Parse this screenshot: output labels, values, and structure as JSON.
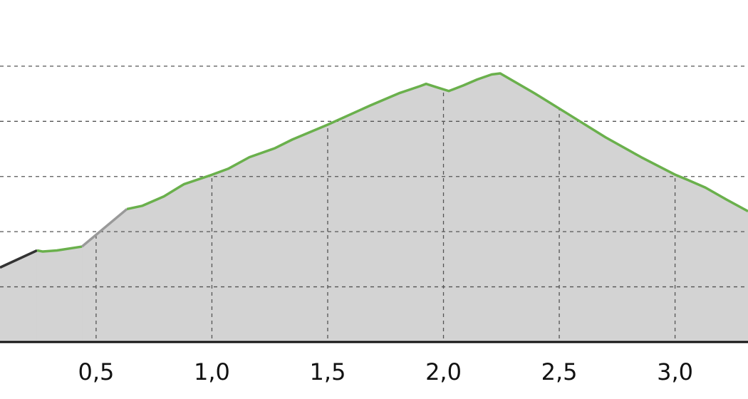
{
  "chart_data": {
    "type": "area-line",
    "xlim": [
      0.085,
      3.315
    ],
    "xticks": [
      {
        "value": 0.5,
        "label": "0,5"
      },
      {
        "value": 1.0,
        "label": "1,0"
      },
      {
        "value": 1.5,
        "label": "1,5"
      },
      {
        "value": 2.0,
        "label": "2,0"
      },
      {
        "value": 2.5,
        "label": "2,5"
      },
      {
        "value": 3.0,
        "label": "3,0"
      }
    ],
    "ylim": [
      0,
      6.2
    ],
    "yticks": [
      1,
      2,
      3,
      4,
      5
    ],
    "grid": true,
    "fill_color": "#d3d3d3",
    "series": [
      {
        "color": "#333333",
        "x": [
          0.085,
          0.245
        ],
        "values": [
          1.35,
          1.66
        ]
      },
      {
        "color": "#6ab04c",
        "x": [
          0.245,
          0.27,
          0.331,
          0.439
        ],
        "values": [
          1.66,
          1.64,
          1.66,
          1.73
        ]
      },
      {
        "color": "#999999",
        "x": [
          0.439,
          0.633
        ],
        "values": [
          1.73,
          2.41
        ]
      },
      {
        "color": "#6ab04c",
        "x": [
          0.633,
          0.7,
          0.793,
          0.879,
          0.999,
          1.07,
          1.162,
          1.27,
          1.347,
          1.5,
          1.685,
          1.808,
          1.9,
          1.925,
          1.962,
          2.023,
          2.085,
          2.146,
          2.208,
          2.245,
          2.393,
          2.547,
          2.7,
          2.854,
          3.002,
          3.054,
          3.131,
          3.223,
          3.315
        ],
        "values": [
          2.41,
          2.47,
          2.64,
          2.86,
          3.03,
          3.14,
          3.35,
          3.51,
          3.67,
          3.94,
          4.29,
          4.51,
          4.64,
          4.68,
          4.63,
          4.55,
          4.65,
          4.76,
          4.85,
          4.87,
          4.51,
          4.11,
          3.71,
          3.35,
          3.03,
          2.94,
          2.8,
          2.58,
          2.37
        ]
      }
    ]
  }
}
